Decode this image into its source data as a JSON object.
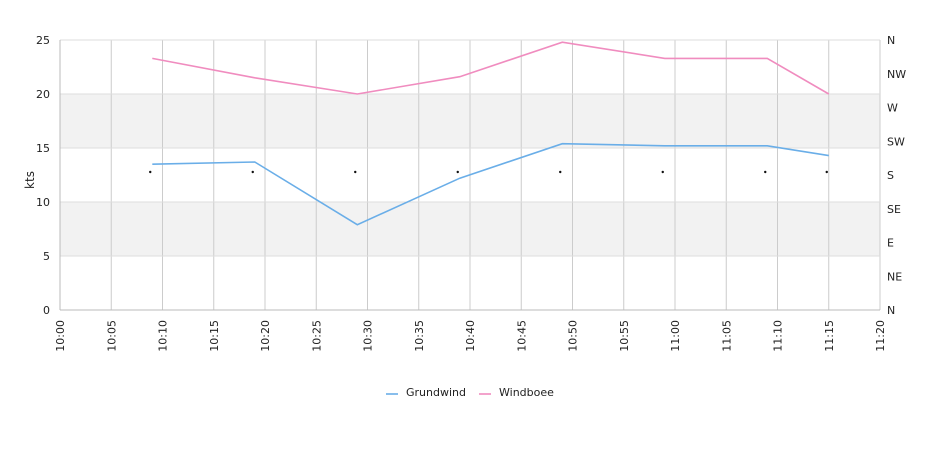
{
  "chart_data": {
    "type": "line",
    "ylabel": "kts",
    "ylim": [
      0,
      25
    ],
    "y_ticks": [
      "0",
      "5",
      "10",
      "15",
      "20",
      "25"
    ],
    "x_range": [
      "10:00",
      "11:20"
    ],
    "x_ticks": [
      "10:00",
      "10:05",
      "10:10",
      "10:15",
      "10:20",
      "10:25",
      "10:30",
      "10:35",
      "10:40",
      "10:45",
      "10:50",
      "10:55",
      "11:00",
      "11:05",
      "11:10",
      "11:15",
      "11:20"
    ],
    "right_axis_ticks": [
      "N",
      "NE",
      "E",
      "SE",
      "S",
      "SW",
      "W",
      "NW",
      "N"
    ],
    "grid": true,
    "series": [
      {
        "name": "Grundwind",
        "color": "#6aaee8",
        "x": [
          "10:09",
          "10:19",
          "10:29",
          "10:39",
          "10:49",
          "10:59",
          "11:09",
          "11:15"
        ],
        "values": [
          13.5,
          13.7,
          7.9,
          12.2,
          15.4,
          15.2,
          15.2,
          14.3
        ]
      },
      {
        "name": "Windboee",
        "color": "#f08cbf",
        "x": [
          "10:09",
          "10:19",
          "10:29",
          "10:39",
          "10:49",
          "10:59",
          "11:09",
          "11:15"
        ],
        "values": [
          23.3,
          21.5,
          20.0,
          21.6,
          24.8,
          23.3,
          23.3,
          20.0
        ]
      }
    ],
    "direction_markers": {
      "x": [
        "10:09",
        "10:19",
        "10:29",
        "10:39",
        "10:49",
        "10:59",
        "11:09",
        "11:15"
      ],
      "value": "S"
    },
    "legend_position": "bottom-center"
  }
}
